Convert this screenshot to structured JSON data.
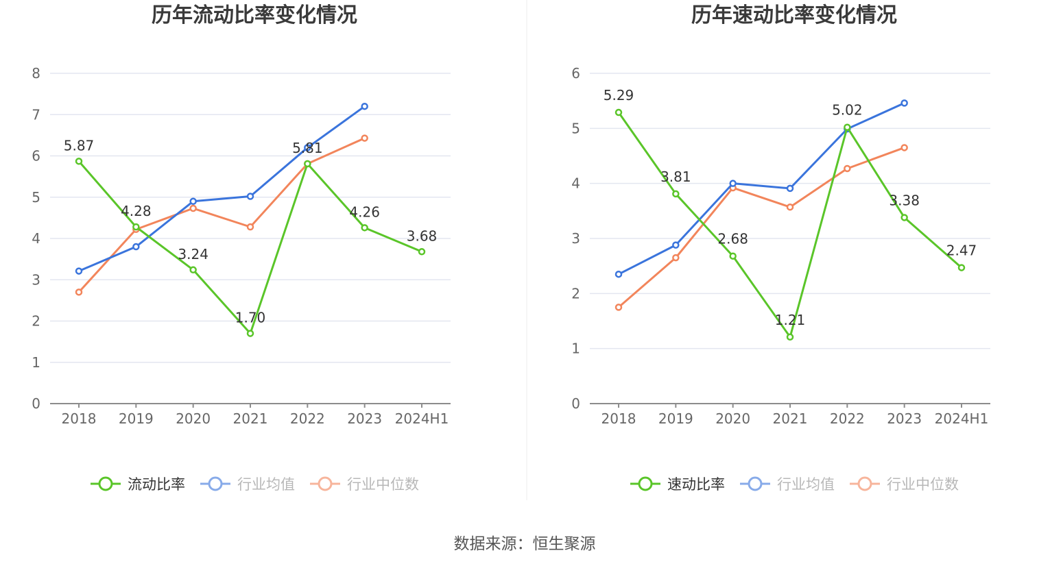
{
  "colors": {
    "company": "#5ac529",
    "average": "#3a74dc",
    "median": "#f2855b",
    "legend_company_text": "#333333",
    "legend_other_text": "#888888"
  },
  "source": "数据来源：恒生聚源",
  "chart_data": [
    {
      "type": "line",
      "title": "历年流动比率变化情况",
      "categories": [
        "2018",
        "2019",
        "2020",
        "2021",
        "2022",
        "2023",
        "2024H1"
      ],
      "ylim": [
        0,
        8
      ],
      "yticks": [
        "0",
        "1",
        "2",
        "3",
        "4",
        "5",
        "6",
        "7",
        "8"
      ],
      "grid": true,
      "legend_position": "bottom-center",
      "series": [
        {
          "name": "流动比率",
          "role": "company",
          "values": [
            5.87,
            4.28,
            3.24,
            1.7,
            5.81,
            4.26,
            3.68
          ],
          "labels": [
            "5.87",
            "4.28",
            "3.24",
            "1.70",
            "5.81",
            "4.26",
            "3.68"
          ]
        },
        {
          "name": "行业均值",
          "role": "average",
          "values": [
            3.21,
            3.8,
            4.9,
            5.02,
            6.2,
            7.2,
            null
          ]
        },
        {
          "name": "行业中位数",
          "role": "median",
          "values": [
            2.7,
            4.22,
            4.73,
            4.28,
            5.81,
            6.43,
            null
          ]
        }
      ]
    },
    {
      "type": "line",
      "title": "历年速动比率变化情况",
      "categories": [
        "2018",
        "2019",
        "2020",
        "2021",
        "2022",
        "2023",
        "2024H1"
      ],
      "ylim": [
        0,
        6
      ],
      "yticks": [
        "0",
        "1",
        "2",
        "3",
        "4",
        "5",
        "6"
      ],
      "grid": true,
      "legend_position": "bottom-center",
      "series": [
        {
          "name": "速动比率",
          "role": "company",
          "values": [
            5.29,
            3.81,
            2.68,
            1.21,
            5.02,
            3.38,
            2.47
          ],
          "labels": [
            "5.29",
            "3.81",
            "2.68",
            "1.21",
            "5.02",
            "3.38",
            "2.47"
          ]
        },
        {
          "name": "行业均值",
          "role": "average",
          "values": [
            2.35,
            2.88,
            4.0,
            3.91,
            4.99,
            5.46,
            null
          ]
        },
        {
          "name": "行业中位数",
          "role": "median",
          "values": [
            1.75,
            2.65,
            3.92,
            3.57,
            4.27,
            4.65,
            null
          ]
        }
      ]
    }
  ]
}
